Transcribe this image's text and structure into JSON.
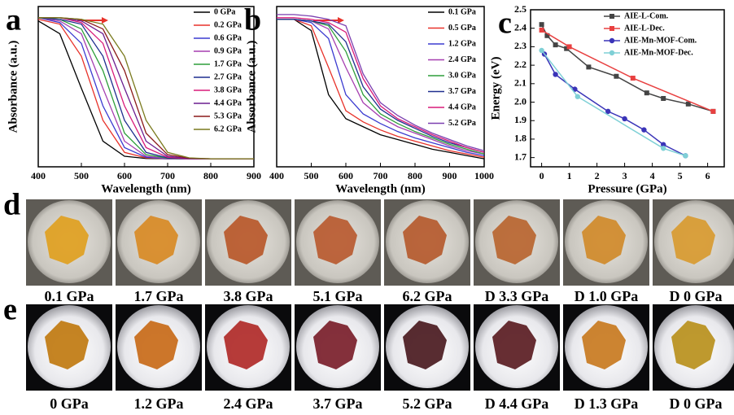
{
  "chart_data": [
    {
      "type": "line",
      "panel_label": "a",
      "xlabel": "Wavelength (nm)",
      "ylabel": "Absorbance (a.u.)",
      "xlim": [
        400,
        900
      ],
      "xticks": [
        400,
        500,
        600,
        700,
        800,
        900
      ],
      "ylim": [
        0,
        1
      ],
      "legend": "upper right",
      "x": [
        400,
        450,
        500,
        550,
        600,
        650,
        700,
        750,
        800,
        850,
        900
      ],
      "series": [
        {
          "name": "0 GPa",
          "color": "#000000",
          "values": [
            0.91,
            0.83,
            0.49,
            0.16,
            0.066,
            0.052,
            0.05,
            0.05,
            0.05,
            0.05,
            0.05
          ]
        },
        {
          "name": "0.2 GPa",
          "color": "#e8322a",
          "values": [
            0.92,
            0.89,
            0.69,
            0.29,
            0.09,
            0.056,
            0.05,
            0.05,
            0.05,
            0.05,
            0.05
          ]
        },
        {
          "name": "0.6 GPa",
          "color": "#3b3bd0",
          "values": [
            0.93,
            0.9,
            0.77,
            0.38,
            0.12,
            0.06,
            0.05,
            0.05,
            0.05,
            0.05,
            0.05
          ]
        },
        {
          "name": "0.9 GPa",
          "color": "#a63fb0",
          "values": [
            0.93,
            0.91,
            0.83,
            0.49,
            0.16,
            0.066,
            0.052,
            0.05,
            0.05,
            0.05,
            0.05
          ]
        },
        {
          "name": "1.7 GPa",
          "color": "#2e9e3a",
          "values": [
            0.93,
            0.92,
            0.86,
            0.6,
            0.21,
            0.076,
            0.054,
            0.05,
            0.05,
            0.05,
            0.05
          ]
        },
        {
          "name": "2.7 GPa",
          "color": "#1f2f8f",
          "values": [
            0.93,
            0.92,
            0.89,
            0.69,
            0.29,
            0.09,
            0.056,
            0.05,
            0.05,
            0.05,
            0.05
          ]
        },
        {
          "name": "3.8 GPa",
          "color": "#d81b7a",
          "values": [
            0.93,
            0.93,
            0.9,
            0.77,
            0.38,
            0.12,
            0.06,
            0.05,
            0.05,
            0.05,
            0.05
          ]
        },
        {
          "name": "4.4 GPa",
          "color": "#6b1e8f",
          "values": [
            0.93,
            0.93,
            0.91,
            0.83,
            0.49,
            0.16,
            0.066,
            0.052,
            0.05,
            0.05,
            0.05
          ]
        },
        {
          "name": "5.3 GPa",
          "color": "#8b1a1a",
          "values": [
            0.93,
            0.93,
            0.92,
            0.86,
            0.6,
            0.21,
            0.076,
            0.054,
            0.05,
            0.05,
            0.05
          ]
        },
        {
          "name": "6.2 GPa",
          "color": "#7a7a1e",
          "values": [
            0.93,
            0.93,
            0.92,
            0.89,
            0.69,
            0.29,
            0.09,
            0.056,
            0.05,
            0.05,
            0.05
          ]
        }
      ]
    },
    {
      "type": "line",
      "panel_label": "b",
      "xlabel": "Wavelength (nm)",
      "ylabel": "Absorbance (a.u.)",
      "xlim": [
        400,
        1000
      ],
      "xticks": [
        400,
        500,
        600,
        700,
        800,
        900,
        1000
      ],
      "ylim": [
        0,
        1
      ],
      "legend": "upper right",
      "x": [
        400,
        450,
        500,
        550,
        600,
        650,
        700,
        750,
        800,
        850,
        900,
        950,
        1000
      ],
      "series": [
        {
          "name": "0.1 GPa",
          "color": "#000000",
          "values": [
            0.92,
            0.92,
            0.85,
            0.45,
            0.3,
            0.25,
            0.2,
            0.17,
            0.14,
            0.11,
            0.09,
            0.07,
            0.05
          ]
        },
        {
          "name": "0.5 GPa",
          "color": "#e8322a",
          "values": [
            0.92,
            0.92,
            0.88,
            0.62,
            0.35,
            0.28,
            0.23,
            0.19,
            0.16,
            0.13,
            0.1,
            0.08,
            0.06
          ]
        },
        {
          "name": "1.2 GPa",
          "color": "#3b3bd0",
          "values": [
            0.92,
            0.92,
            0.9,
            0.8,
            0.45,
            0.33,
            0.27,
            0.22,
            0.18,
            0.15,
            0.12,
            0.09,
            0.07
          ]
        },
        {
          "name": "2.4 GPa",
          "color": "#a63fb0",
          "values": [
            0.92,
            0.92,
            0.91,
            0.86,
            0.62,
            0.4,
            0.31,
            0.25,
            0.21,
            0.17,
            0.13,
            0.1,
            0.08
          ]
        },
        {
          "name": "3.0 GPa",
          "color": "#2e9e3a",
          "values": [
            0.92,
            0.92,
            0.91,
            0.88,
            0.72,
            0.45,
            0.33,
            0.27,
            0.22,
            0.18,
            0.14,
            0.11,
            0.08
          ]
        },
        {
          "name": "3.7 GPa",
          "color": "#1f2f8f",
          "values": [
            0.92,
            0.92,
            0.91,
            0.89,
            0.78,
            0.5,
            0.36,
            0.29,
            0.24,
            0.19,
            0.15,
            0.12,
            0.09
          ]
        },
        {
          "name": "4.4 GPa",
          "color": "#d81b7a",
          "values": [
            0.93,
            0.93,
            0.92,
            0.9,
            0.84,
            0.55,
            0.38,
            0.3,
            0.25,
            0.2,
            0.16,
            0.12,
            0.09
          ]
        },
        {
          "name": "5.2 GPa",
          "color": "#7b3fb0",
          "values": [
            0.95,
            0.95,
            0.94,
            0.92,
            0.88,
            0.58,
            0.4,
            0.32,
            0.26,
            0.21,
            0.17,
            0.13,
            0.1
          ]
        }
      ]
    },
    {
      "type": "line",
      "panel_label": "c",
      "xlabel": "Pressure (GPa)",
      "ylabel": "Energy (eV)",
      "xlim": [
        -0.4,
        6.6
      ],
      "xticks": [
        0,
        1,
        2,
        3,
        4,
        5,
        6
      ],
      "ylim": [
        1.65,
        2.5
      ],
      "yticks": [
        1.7,
        1.8,
        1.9,
        {
          "value": 2,
          "label": "2.0"
        },
        2.1,
        2.2,
        2.3,
        2.4,
        2.5
      ],
      "legend": "upper right",
      "series": [
        {
          "name": "AIE-L-Com.",
          "color": "#444444",
          "marker": "square",
          "x": [
            0,
            0.2,
            0.5,
            0.9,
            1.7,
            2.7,
            3.8,
            4.4,
            5.3,
            6.2
          ],
          "values": [
            2.42,
            2.36,
            2.31,
            2.29,
            2.19,
            2.14,
            2.05,
            2.02,
            1.99,
            1.95
          ]
        },
        {
          "name": "AIE-L-Dec.",
          "color": "#e84040",
          "marker": "square",
          "x": [
            6.2,
            3.3,
            1,
            0
          ],
          "values": [
            1.95,
            2.13,
            2.3,
            2.39
          ]
        },
        {
          "name": "AIE-Mn-MOF-Com.",
          "color": "#3a34b8",
          "marker": "circle",
          "x": [
            0.1,
            0.5,
            1.2,
            2.4,
            3,
            3.7,
            4.4,
            5.2
          ],
          "values": [
            2.26,
            2.15,
            2.07,
            1.95,
            1.91,
            1.85,
            1.77,
            1.71
          ]
        },
        {
          "name": "AIE-Mn-MOF-Dec.",
          "color": "#7fd0d6",
          "marker": "circle",
          "x": [
            5.2,
            4.4,
            1.3,
            0
          ],
          "values": [
            1.71,
            1.75,
            2.03,
            2.28
          ]
        }
      ]
    }
  ],
  "photo_rows": [
    {
      "label": "d",
      "captions": [
        "0.1 GPa",
        "1.7 GPa",
        "3.8 GPa",
        "5.1 GPa",
        "6.2 GPa",
        "D 3.3 GPa",
        "D 1.0 GPa",
        "D 0 GPa"
      ]
    },
    {
      "label": "e",
      "captions": [
        "0 GPa",
        "1.2 GPa",
        "2.4 GPa",
        "3.7 GPa",
        "5.2 GPa",
        "D 4.4 GPa",
        "D 1.3 GPa",
        "D 0 GPa"
      ]
    }
  ]
}
